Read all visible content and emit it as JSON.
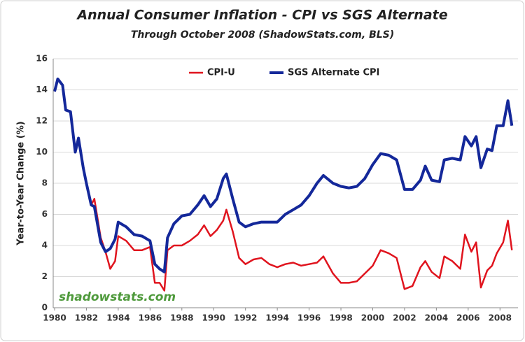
{
  "chart_data": {
    "type": "line",
    "title": "Annual Consumer Inflation - CPI vs SGS Alternate",
    "subtitle": "Through October 2008 (ShadowStats.com, BLS)",
    "y_label": "Year-to-Year Change (%)",
    "watermark": "shadowstats.com",
    "x": [
      1980.0,
      1980.2,
      1980.5,
      1980.7,
      1981.0,
      1981.3,
      1981.5,
      1981.8,
      1982.0,
      1982.3,
      1982.5,
      1982.9,
      1983.2,
      1983.5,
      1983.8,
      1984.0,
      1984.5,
      1985.0,
      1985.5,
      1986.0,
      1986.3,
      1986.6,
      1986.9,
      1987.1,
      1987.5,
      1988.0,
      1988.5,
      1989.0,
      1989.4,
      1989.8,
      1990.2,
      1990.6,
      1990.8,
      1991.2,
      1991.6,
      1992.0,
      1992.5,
      1993.0,
      1993.5,
      1994.0,
      1994.5,
      1995.0,
      1995.5,
      1996.0,
      1996.5,
      1996.9,
      1997.5,
      1998.0,
      1998.5,
      1999.0,
      1999.5,
      2000.0,
      2000.5,
      2001.0,
      2001.5,
      2002.0,
      2002.5,
      2003.0,
      2003.3,
      2003.7,
      2004.2,
      2004.5,
      2005.0,
      2005.5,
      2005.8,
      2006.2,
      2006.5,
      2006.8,
      2007.2,
      2007.5,
      2007.8,
      2008.2,
      2008.5,
      2008.75
    ],
    "series": [
      {
        "name": "CPI-U",
        "color": "#e0141e",
        "values": [
          13.9,
          14.7,
          14.3,
          12.7,
          12.6,
          10.0,
          10.9,
          9.0,
          8.0,
          6.6,
          7.0,
          4.5,
          3.6,
          2.5,
          3.0,
          4.6,
          4.3,
          3.7,
          3.7,
          3.9,
          1.6,
          1.6,
          1.1,
          3.7,
          4.0,
          4.0,
          4.3,
          4.7,
          5.3,
          4.6,
          5.0,
          5.6,
          6.3,
          4.9,
          3.2,
          2.8,
          3.1,
          3.2,
          2.8,
          2.6,
          2.8,
          2.9,
          2.7,
          2.8,
          2.9,
          3.3,
          2.2,
          1.6,
          1.6,
          1.7,
          2.2,
          2.7,
          3.7,
          3.5,
          3.2,
          1.2,
          1.4,
          2.6,
          3.0,
          2.3,
          1.9,
          3.3,
          3.0,
          2.5,
          4.7,
          3.6,
          4.2,
          1.3,
          2.4,
          2.7,
          3.5,
          4.2,
          5.6,
          3.7
        ]
      },
      {
        "name": "SGS Alternate CPI",
        "color": "#14289a",
        "values": [
          13.9,
          14.7,
          14.3,
          12.7,
          12.6,
          10.0,
          10.9,
          9.0,
          8.0,
          6.6,
          6.5,
          4.2,
          3.6,
          3.8,
          4.4,
          5.5,
          5.2,
          4.7,
          4.6,
          4.3,
          2.8,
          2.5,
          2.3,
          4.5,
          5.4,
          5.9,
          6.0,
          6.6,
          7.2,
          6.5,
          7.0,
          8.3,
          8.6,
          7.0,
          5.5,
          5.2,
          5.4,
          5.5,
          5.5,
          5.5,
          6.0,
          6.3,
          6.6,
          7.2,
          8.0,
          8.5,
          8.0,
          7.8,
          7.7,
          7.8,
          8.3,
          9.2,
          9.9,
          9.8,
          9.5,
          7.6,
          7.6,
          8.2,
          9.1,
          8.2,
          8.1,
          9.5,
          9.6,
          9.5,
          11.0,
          10.4,
          11.0,
          9.0,
          10.2,
          10.1,
          11.7,
          11.7,
          13.3,
          11.7
        ]
      }
    ],
    "xlim": [
      1980,
      2009
    ],
    "xticks": [
      1980,
      1982,
      1984,
      1986,
      1988,
      1990,
      1992,
      1994,
      1996,
      1998,
      2000,
      2002,
      2004,
      2006,
      2008
    ],
    "ylim": [
      0,
      16
    ],
    "yticks": [
      0,
      2,
      4,
      6,
      8,
      10,
      12,
      14,
      16
    ],
    "grid": true,
    "legend": "top"
  }
}
